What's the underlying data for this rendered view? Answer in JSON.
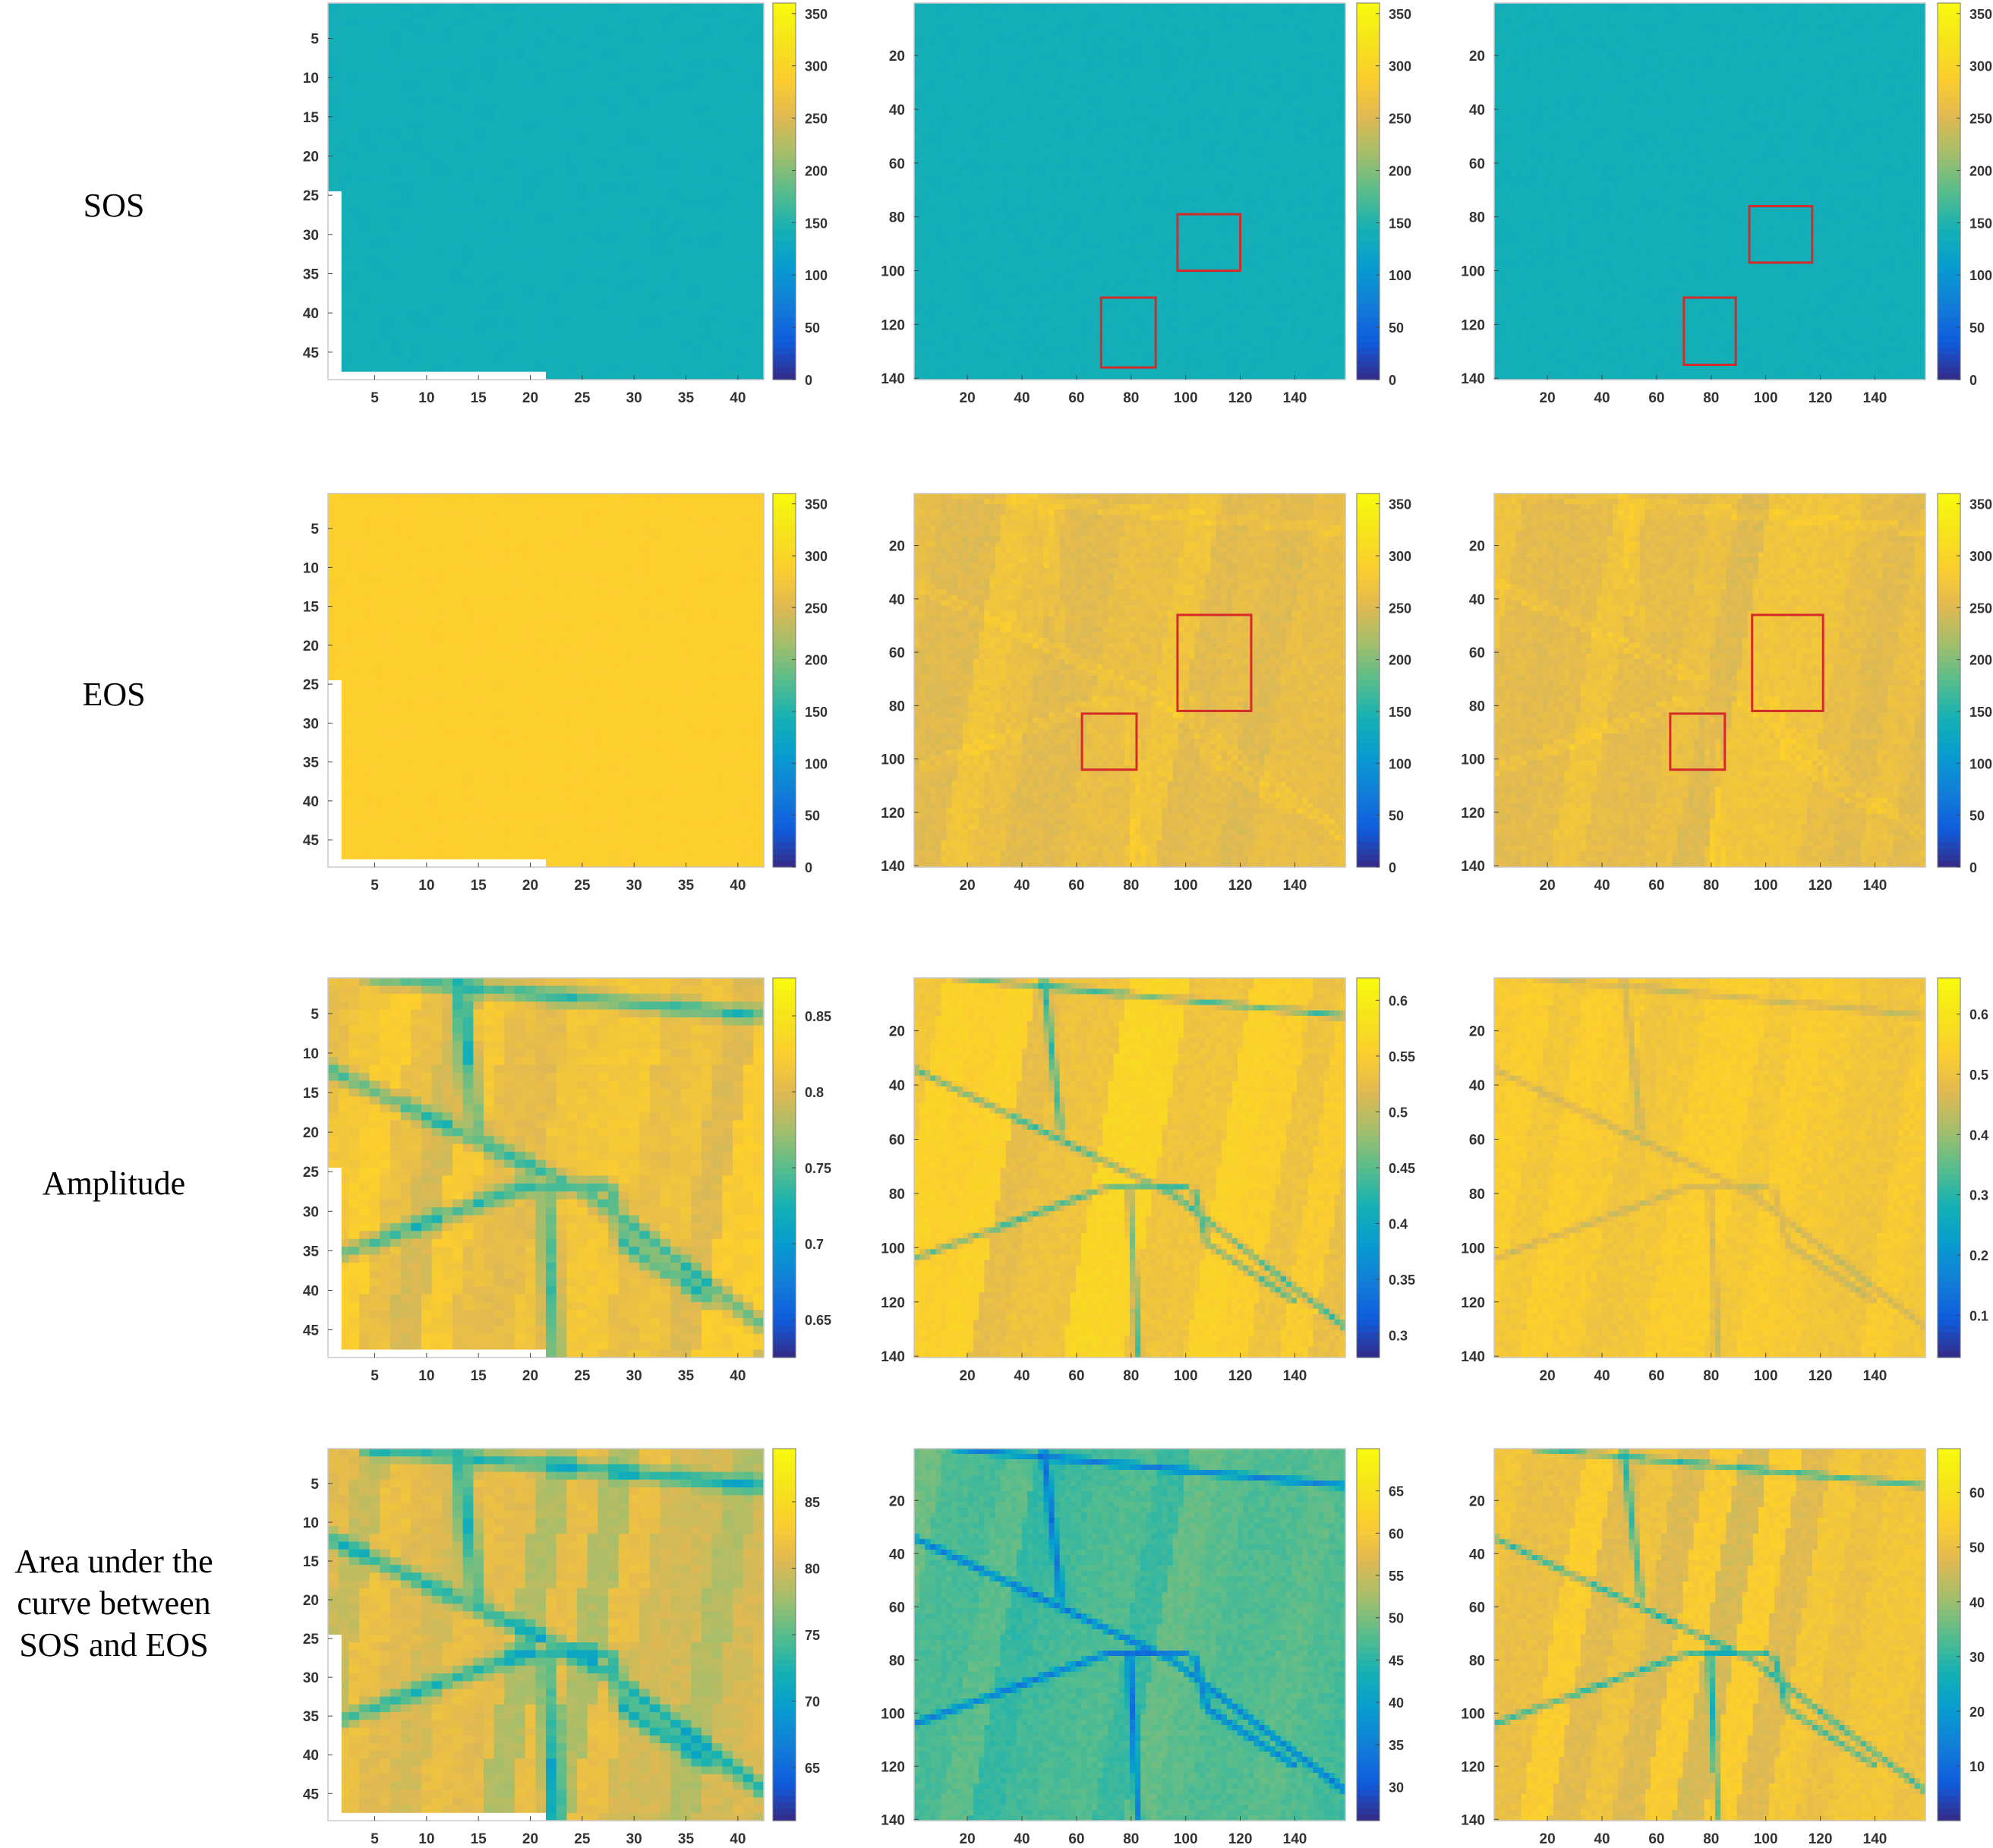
{
  "row_labels": [
    [
      "SOS"
    ],
    [
      "EOS"
    ],
    [
      "Amplitude"
    ],
    [
      "Area under the",
      "curve between",
      "SOS and EOS"
    ]
  ],
  "colormap": "parula",
  "chart_data": [
    {
      "type": "heatmap",
      "row": "SOS",
      "column": 1,
      "xlim": [
        1,
        42
      ],
      "ylim": [
        1,
        48
      ],
      "x_ticks": [
        5,
        10,
        15,
        20,
        25,
        30,
        35,
        40
      ],
      "y_ticks": [
        5,
        10,
        15,
        20,
        25,
        30,
        35,
        40,
        45
      ],
      "clim": [
        0,
        360
      ],
      "colorbar_ticks": [
        0,
        50,
        100,
        150,
        200,
        250,
        300,
        350
      ],
      "base_value": 140,
      "pattern": "uniform",
      "boxes": []
    },
    {
      "type": "heatmap",
      "row": "SOS",
      "column": 2,
      "xlim": [
        1,
        158
      ],
      "ylim": [
        1,
        140
      ],
      "x_ticks": [
        20,
        40,
        60,
        80,
        100,
        120,
        140
      ],
      "y_ticks": [
        20,
        40,
        60,
        80,
        100,
        120,
        140
      ],
      "clim": [
        0,
        360
      ],
      "colorbar_ticks": [
        0,
        50,
        100,
        150,
        200,
        250,
        300,
        350
      ],
      "base_value": 140,
      "pattern": "uniform",
      "boxes": [
        {
          "x": [
            97,
            120
          ],
          "y": [
            79,
            100
          ]
        },
        {
          "x": [
            69,
            89
          ],
          "y": [
            110,
            136
          ]
        }
      ]
    },
    {
      "type": "heatmap",
      "row": "SOS",
      "column": 3,
      "xlim": [
        1,
        158
      ],
      "ylim": [
        1,
        140
      ],
      "x_ticks": [
        20,
        40,
        60,
        80,
        100,
        120,
        140
      ],
      "y_ticks": [
        20,
        40,
        60,
        80,
        100,
        120,
        140
      ],
      "clim": [
        0,
        360
      ],
      "colorbar_ticks": [
        0,
        50,
        100,
        150,
        200,
        250,
        300,
        350
      ],
      "base_value": 140,
      "pattern": "uniform",
      "boxes": [
        {
          "x": [
            94,
            117
          ],
          "y": [
            76,
            97
          ]
        },
        {
          "x": [
            70,
            89
          ],
          "y": [
            110,
            135
          ]
        }
      ]
    },
    {
      "type": "heatmap",
      "row": "EOS",
      "column": 1,
      "xlim": [
        1,
        42
      ],
      "ylim": [
        1,
        48
      ],
      "x_ticks": [
        5,
        10,
        15,
        20,
        25,
        30,
        35,
        40
      ],
      "y_ticks": [
        5,
        10,
        15,
        20,
        25,
        30,
        35,
        40,
        45
      ],
      "clim": [
        0,
        360
      ],
      "colorbar_ticks": [
        0,
        50,
        100,
        150,
        200,
        250,
        300,
        350
      ],
      "base_value": 290,
      "pattern": "uniform",
      "boxes": []
    },
    {
      "type": "heatmap",
      "row": "EOS",
      "column": 2,
      "xlim": [
        1,
        158
      ],
      "ylim": [
        1,
        140
      ],
      "x_ticks": [
        20,
        40,
        60,
        80,
        100,
        120,
        140
      ],
      "y_ticks": [
        20,
        40,
        60,
        80,
        100,
        120,
        140
      ],
      "clim": [
        0,
        360
      ],
      "colorbar_ticks": [
        0,
        50,
        100,
        150,
        200,
        250,
        300,
        350
      ],
      "base_value": 262,
      "pattern": "fields",
      "boxes": [
        {
          "x": [
            97,
            124
          ],
          "y": [
            46,
            82
          ]
        },
        {
          "x": [
            62,
            82
          ],
          "y": [
            83,
            104
          ]
        }
      ]
    },
    {
      "type": "heatmap",
      "row": "EOS",
      "column": 3,
      "xlim": [
        1,
        158
      ],
      "ylim": [
        1,
        140
      ],
      "x_ticks": [
        20,
        40,
        60,
        80,
        100,
        120,
        140
      ],
      "y_ticks": [
        20,
        40,
        60,
        80,
        100,
        120,
        140
      ],
      "clim": [
        0,
        360
      ],
      "colorbar_ticks": [
        0,
        50,
        100,
        150,
        200,
        250,
        300,
        350
      ],
      "base_value": 262,
      "pattern": "fields",
      "boxes": [
        {
          "x": [
            95,
            121
          ],
          "y": [
            46,
            82
          ]
        },
        {
          "x": [
            65,
            85
          ],
          "y": [
            83,
            104
          ]
        }
      ]
    },
    {
      "type": "heatmap",
      "row": "Amplitude",
      "column": 1,
      "xlim": [
        1,
        42
      ],
      "ylim": [
        1,
        48
      ],
      "x_ticks": [
        5,
        10,
        15,
        20,
        25,
        30,
        35,
        40
      ],
      "y_ticks": [
        5,
        10,
        15,
        20,
        25,
        30,
        35,
        40,
        45
      ],
      "clim": [
        0.625,
        0.875
      ],
      "colorbar_ticks": [
        0.65,
        0.7,
        0.75,
        0.8,
        0.85
      ],
      "base_value": 0.81,
      "pattern": "fields_coarse",
      "boxes": []
    },
    {
      "type": "heatmap",
      "row": "Amplitude",
      "column": 2,
      "xlim": [
        1,
        158
      ],
      "ylim": [
        1,
        140
      ],
      "x_ticks": [
        20,
        40,
        60,
        80,
        100,
        120,
        140
      ],
      "y_ticks": [
        20,
        40,
        60,
        80,
        100,
        120,
        140
      ],
      "clim": [
        0.28,
        0.62
      ],
      "colorbar_ticks": [
        0.3,
        0.35,
        0.4,
        0.45,
        0.5,
        0.55,
        0.6
      ],
      "base_value": 0.545,
      "pattern": "fields_roads",
      "boxes": []
    },
    {
      "type": "heatmap",
      "row": "Amplitude",
      "column": 3,
      "xlim": [
        1,
        158
      ],
      "ylim": [
        1,
        140
      ],
      "x_ticks": [
        20,
        40,
        60,
        80,
        100,
        120,
        140
      ],
      "y_ticks": [
        20,
        40,
        60,
        80,
        100,
        120,
        140
      ],
      "clim": [
        0.03,
        0.66
      ],
      "colorbar_ticks": [
        0.1,
        0.2,
        0.3,
        0.4,
        0.5,
        0.6
      ],
      "base_value": 0.52,
      "pattern": "fields_roads_faint",
      "boxes": []
    },
    {
      "type": "heatmap",
      "row": "Area under the curve between SOS and EOS",
      "column": 1,
      "xlim": [
        1,
        42
      ],
      "ylim": [
        1,
        48
      ],
      "x_ticks": [
        5,
        10,
        15,
        20,
        25,
        30,
        35,
        40
      ],
      "y_ticks": [
        5,
        10,
        15,
        20,
        25,
        30,
        35,
        40,
        45
      ],
      "clim": [
        61,
        89
      ],
      "colorbar_ticks": [
        65,
        70,
        75,
        80,
        85
      ],
      "base_value": 80,
      "pattern": "fields_coarse",
      "boxes": []
    },
    {
      "type": "heatmap",
      "row": "Area under the curve between SOS and EOS",
      "column": 2,
      "xlim": [
        1,
        158
      ],
      "ylim": [
        1,
        140
      ],
      "x_ticks": [
        20,
        40,
        60,
        80,
        100,
        120,
        140
      ],
      "y_ticks": [
        20,
        40,
        60,
        80,
        100,
        120,
        140
      ],
      "clim": [
        26,
        70
      ],
      "colorbar_ticks": [
        30,
        35,
        40,
        45,
        50,
        55,
        60,
        65
      ],
      "base_value": 48,
      "pattern": "fields_roads",
      "boxes": []
    },
    {
      "type": "heatmap",
      "row": "Area under the curve between SOS and EOS",
      "column": 3,
      "xlim": [
        1,
        158
      ],
      "ylim": [
        1,
        140
      ],
      "x_ticks": [
        20,
        40,
        60,
        80,
        100,
        120,
        140
      ],
      "y_ticks": [
        20,
        40,
        60,
        80,
        100,
        120,
        140
      ],
      "clim": [
        0,
        68
      ],
      "colorbar_ticks": [
        10,
        20,
        30,
        40,
        50,
        60
      ],
      "base_value": 50,
      "pattern": "fields_roads",
      "boxes": []
    }
  ]
}
